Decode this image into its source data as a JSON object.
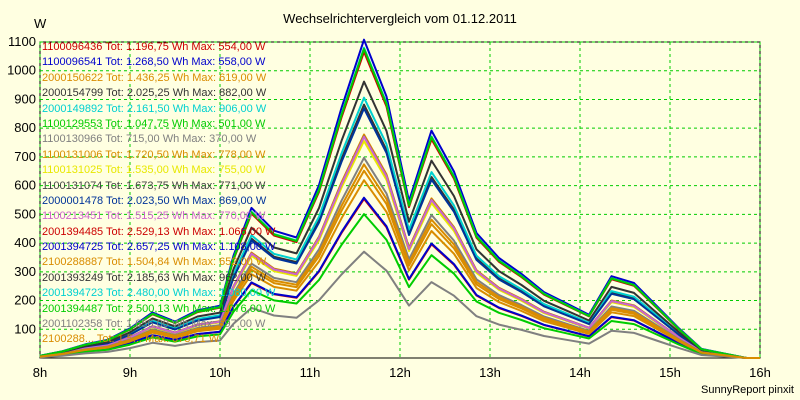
{
  "chart_data": {
    "type": "line",
    "title": "Wechselrichtervergleich vom 01.12.2011",
    "ylabel": "W",
    "xlabel": "",
    "footer": "SunnyReport pinxit",
    "ylim": [
      0,
      1100
    ],
    "xlim": [
      8,
      16
    ],
    "yticks": [
      100,
      200,
      300,
      400,
      500,
      600,
      700,
      800,
      900,
      1000,
      1100
    ],
    "xticks": [
      {
        "value": 8,
        "label": "8h"
      },
      {
        "value": 9,
        "label": "9h"
      },
      {
        "value": 10,
        "label": "10h"
      },
      {
        "value": 11,
        "label": "11h"
      },
      {
        "value": 12,
        "label": "12h"
      },
      {
        "value": 13,
        "label": "13h"
      },
      {
        "value": 14,
        "label": "14h"
      },
      {
        "value": 15,
        "label": "15h"
      },
      {
        "value": 16,
        "label": "16h"
      }
    ],
    "grid": true,
    "background_color": "#ffffe1",
    "grid_color": "#00cc00",
    "x": [
      8.0,
      8.25,
      8.5,
      8.75,
      9.0,
      9.25,
      9.5,
      9.75,
      10.0,
      10.15,
      10.35,
      10.6,
      10.85,
      11.1,
      11.35,
      11.6,
      11.85,
      12.1,
      12.35,
      12.6,
      12.85,
      13.1,
      13.35,
      13.6,
      13.85,
      14.1,
      14.35,
      14.6,
      14.85,
      15.1,
      15.35,
      15.6,
      15.85,
      16.0
    ],
    "base_profile": [
      0.01,
      0.03,
      0.06,
      0.08,
      0.13,
      0.2,
      0.16,
      0.21,
      0.23,
      0.45,
      0.66,
      0.56,
      0.53,
      0.76,
      1.1,
      1.4,
      1.15,
      0.69,
      1.0,
      0.82,
      0.55,
      0.44,
      0.37,
      0.29,
      0.24,
      0.19,
      0.36,
      0.33,
      0.23,
      0.13,
      0.04,
      0.02,
      0.0,
      0.0
    ],
    "series": [
      {
        "name": "1100096436",
        "label": "1100096436 Tot: 1.196,75 Wh Max: 554,00 W",
        "max": 554,
        "color": "#cc0000"
      },
      {
        "name": "1100096541",
        "label": "1100096541 Tot: 1.268,50 Wh Max: 558,00 W",
        "max": 558,
        "color": "#0000cc"
      },
      {
        "name": "2000150622",
        "label": "2000150622 Tot: 1.436,25 Wh Max: 619,00 W",
        "max": 619,
        "color": "#d98c00"
      },
      {
        "name": "2000154799",
        "label": "2000154799 Tot: 2.025,25 Wh Max: 882,00 W",
        "max": 882,
        "color": "#333333"
      },
      {
        "name": "2000149892",
        "label": "2000149892 Tot: 2.161,50 Wh Max: 906,00 W",
        "max": 906,
        "color": "#00d0d0"
      },
      {
        "name": "1100129553",
        "label": "1100129553 Tot: 1.047,75 Wh Max: 501,00 W",
        "max": 501,
        "color": "#00cc00"
      },
      {
        "name": "1100130966",
        "label": "1100130966 Tot: 715,00 Wh Max: 370,00 W",
        "max": 370,
        "color": "#808080"
      },
      {
        "name": "1100131006",
        "label": "1100131006 Tot: 1.720,50 Wh Max: 778,00 W",
        "max": 778,
        "color": "#d98c00"
      },
      {
        "name": "1100131025",
        "label": "1100131025 Tot: 1.535,00 Wh Max: 755,00 W",
        "max": 755,
        "color": "#e8e800"
      },
      {
        "name": "1100131074",
        "label": "1100131074 Tot: 1.673,75 Wh Max: 771,00 W",
        "max": 771,
        "color": "#444444"
      },
      {
        "name": "2000001478",
        "label": "2000001478 Tot: 2.023,50 Wh Max: 869,00 W",
        "max": 869,
        "color": "#003399"
      },
      {
        "name": "1100213451",
        "label": "1100213451 Tot: 1.515,25 Wh Max: 770,00 W",
        "max": 770,
        "color": "#cc66cc"
      },
      {
        "name": "2001394485",
        "label": "2001394485 Tot: 2.529,13 Wh Max: 1.066,00 W",
        "max": 1066,
        "color": "#cc0000"
      },
      {
        "name": "2001394725",
        "label": "2001394725 Tot: 2.657,25 Wh Max: 1.108,00 W",
        "max": 1108,
        "color": "#0000cc"
      },
      {
        "name": "2100288887",
        "label": "2100288887 Tot: 1.504,84 Wh Max: 652,00 W",
        "max": 652,
        "color": "#d98c00"
      },
      {
        "name": "2001393249",
        "label": "2001393249 Tot: 2.185,63 Wh Max: 962,00 W",
        "max": 962,
        "color": "#333333"
      },
      {
        "name": "2001394723",
        "label": "2001394723 Tot: 2.480,00 Wh Max: 1.080,00 W",
        "max": 1080,
        "color": "#00d0d0"
      },
      {
        "name": "2001394487",
        "label": "2001394487 Tot: 2.500,13 Wh Max: 1.076,00 W",
        "max": 1076,
        "color": "#00cc00"
      },
      {
        "name": "2001102358",
        "label": "2001102358 Tot: 1.656,00 Wh Max: 697,00 W",
        "max": 697,
        "color": "#808080"
      },
      {
        "name": "2100288",
        "label": "2100288... Tot: 1.5... Max: 673,71 W",
        "max": 674,
        "color": "#d98c00"
      }
    ]
  }
}
